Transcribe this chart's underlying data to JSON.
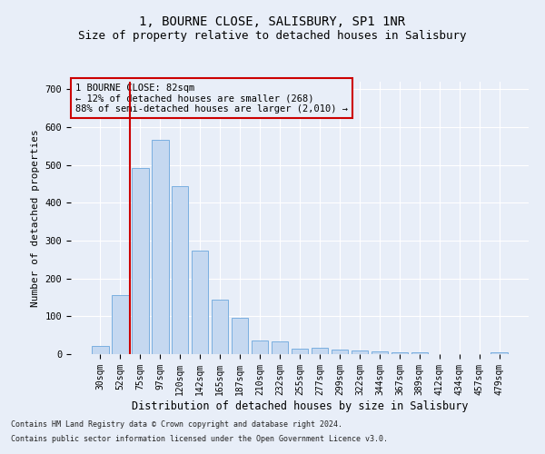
{
  "title": "1, BOURNE CLOSE, SALISBURY, SP1 1NR",
  "subtitle": "Size of property relative to detached houses in Salisbury",
  "xlabel": "Distribution of detached houses by size in Salisbury",
  "ylabel": "Number of detached properties",
  "footer_line1": "Contains HM Land Registry data © Crown copyright and database right 2024.",
  "footer_line2": "Contains public sector information licensed under the Open Government Licence v3.0.",
  "categories": [
    "30sqm",
    "52sqm",
    "75sqm",
    "97sqm",
    "120sqm",
    "142sqm",
    "165sqm",
    "187sqm",
    "210sqm",
    "232sqm",
    "255sqm",
    "277sqm",
    "299sqm",
    "322sqm",
    "344sqm",
    "367sqm",
    "389sqm",
    "412sqm",
    "434sqm",
    "457sqm",
    "479sqm"
  ],
  "values": [
    22,
    155,
    493,
    567,
    443,
    273,
    145,
    97,
    35,
    33,
    14,
    18,
    12,
    10,
    7,
    6,
    6,
    0,
    0,
    0,
    6
  ],
  "bar_color": "#c5d8f0",
  "bar_edge_color": "#7aafe0",
  "annotation_text": "1 BOURNE CLOSE: 82sqm\n← 12% of detached houses are smaller (268)\n88% of semi-detached houses are larger (2,010) →",
  "vline_color": "#cc0000",
  "annotation_box_color": "#cc0000",
  "ylim": [
    0,
    720
  ],
  "yticks": [
    0,
    100,
    200,
    300,
    400,
    500,
    600,
    700
  ],
  "background_color": "#e8eef8",
  "grid_color": "#ffffff",
  "title_fontsize": 10,
  "subtitle_fontsize": 9,
  "axis_label_fontsize": 8,
  "tick_fontsize": 7,
  "annotation_fontsize": 7.5,
  "footer_fontsize": 6
}
